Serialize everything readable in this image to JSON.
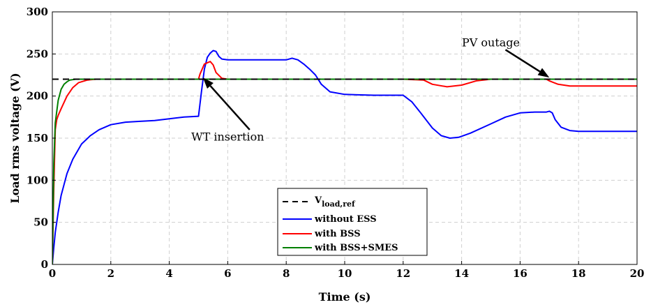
{
  "chart_data": {
    "type": "line",
    "title": "",
    "xlabel": "Time (s)",
    "ylabel": "Load rms voltage (V)",
    "xlim": [
      0,
      20
    ],
    "ylim": [
      0,
      300
    ],
    "xticks": [
      0,
      2,
      4,
      6,
      8,
      10,
      12,
      14,
      16,
      18,
      20
    ],
    "yticks": [
      0,
      50,
      100,
      150,
      200,
      250,
      300
    ],
    "xtick_labels": [
      "0",
      "2",
      "4",
      "6",
      "8",
      "10",
      "12",
      "14",
      "16",
      "18",
      "20"
    ],
    "ytick_labels": [
      "0",
      "50",
      "100",
      "150",
      "200",
      "250",
      "300"
    ],
    "grid": true,
    "legend_position": "bottom-center",
    "series": [
      {
        "name": "V_load,ref",
        "legend_main": "V",
        "legend_sub": "load,ref",
        "color": "#000000",
        "dash": true,
        "x": [
          0,
          20
        ],
        "y": [
          220,
          220
        ]
      },
      {
        "name": "without ESS",
        "color": "#0000ff",
        "dash": false,
        "x": [
          0,
          0.05,
          0.1,
          0.2,
          0.3,
          0.5,
          0.7,
          1.0,
          1.3,
          1.6,
          2.0,
          2.5,
          3.0,
          3.5,
          4.0,
          4.5,
          5.0,
          5.1,
          5.2,
          5.3,
          5.4,
          5.5,
          5.6,
          5.7,
          5.8,
          6.0,
          6.5,
          7.0,
          7.5,
          8.0,
          8.2,
          8.4,
          8.6,
          8.8,
          9.0,
          9.2,
          9.5,
          10.0,
          11.0,
          12.0,
          12.3,
          12.6,
          13.0,
          13.3,
          13.6,
          13.9,
          14.3,
          15.0,
          15.5,
          16.0,
          16.5,
          16.9,
          17.0,
          17.1,
          17.2,
          17.4,
          17.7,
          18.0,
          19.0,
          20.0
        ],
        "y": [
          0,
          20,
          38,
          62,
          82,
          108,
          125,
          143,
          153,
          160,
          166,
          169,
          170,
          171,
          173,
          175,
          176,
          205,
          232,
          246,
          251,
          254,
          253,
          247,
          244,
          243,
          243,
          243,
          243,
          243,
          245,
          243,
          238,
          232,
          225,
          214,
          205,
          202,
          201,
          201,
          193,
          180,
          162,
          153,
          150,
          151,
          156,
          167,
          175,
          180,
          181,
          181,
          182,
          180,
          172,
          163,
          159,
          158,
          158,
          158
        ]
      },
      {
        "name": "with BSS",
        "color": "#ff0000",
        "dash": false,
        "x": [
          0,
          0.05,
          0.1,
          0.15,
          0.2,
          0.3,
          0.5,
          0.7,
          0.9,
          1.2,
          1.5,
          5.0,
          5.05,
          5.2,
          5.4,
          5.5,
          5.6,
          5.8,
          6.0,
          6.5,
          8.0,
          12.0,
          12.7,
          13.0,
          13.5,
          14.0,
          14.5,
          15.0,
          16.0,
          16.9,
          17.0,
          17.3,
          17.7,
          18.0,
          20.0
        ],
        "y": [
          0,
          90,
          160,
          172,
          177,
          185,
          200,
          210,
          216,
          219,
          220,
          220,
          226,
          238,
          241,
          237,
          228,
          221,
          220,
          220,
          220,
          220,
          219,
          214,
          211,
          213,
          218,
          220,
          220,
          220,
          218,
          214,
          212,
          212,
          212
        ]
      },
      {
        "name": "with BSS+SMES",
        "color": "#007f00",
        "dash": false,
        "x": [
          0,
          0.05,
          0.1,
          0.2,
          0.3,
          0.4,
          0.5,
          0.6,
          0.8,
          20.0
        ],
        "y": [
          0,
          120,
          168,
          195,
          208,
          214,
          217,
          219,
          220,
          220
        ]
      }
    ],
    "annotations": [
      {
        "text": "WT insertion",
        "x": 6.0,
        "y": 147,
        "arrow_to": [
          5.15,
          222
        ],
        "arrow_from": [
          6.75,
          160
        ]
      },
      {
        "text": "PV outage",
        "x": 15.0,
        "y": 259,
        "arrow_to": [
          17.0,
          222
        ],
        "arrow_from": [
          15.5,
          255
        ]
      }
    ]
  }
}
